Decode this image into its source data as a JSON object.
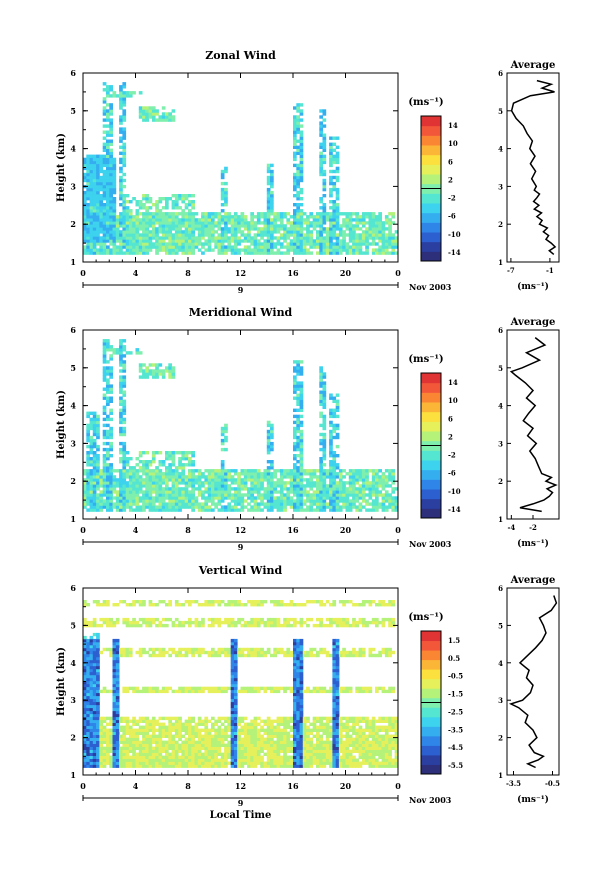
{
  "chart_data": [
    {
      "type": "heatmap",
      "title": "Zonal Wind",
      "ylabel": "Height (km)",
      "yticks": [
        "1",
        "2",
        "3",
        "4",
        "5",
        "6"
      ],
      "ylim": [
        1,
        6
      ],
      "xticks": [
        "0",
        "4",
        "8",
        "12",
        "16",
        "20",
        "0"
      ],
      "date_label": "9",
      "month_label": "Nov 2003",
      "colorbar": {
        "unit": "(ms⁻¹)",
        "ticks": [
          "14",
          "10",
          "6",
          "2",
          "-2",
          "-6",
          "-10",
          "-14"
        ],
        "range": [
          -16,
          16
        ]
      },
      "average": {
        "title": "Average",
        "xlabel": "(ms⁻¹)",
        "xticks": [
          "-7",
          "-1"
        ],
        "xlim": [
          -7.6,
          0.4
        ],
        "profile": [
          [
            1.2,
            -0.4
          ],
          [
            1.3,
            -1.1
          ],
          [
            1.4,
            -0.2
          ],
          [
            1.5,
            -0.8
          ],
          [
            1.6,
            -1.6
          ],
          [
            1.7,
            -1.2
          ],
          [
            1.8,
            -2.0
          ],
          [
            1.9,
            -1.4
          ],
          [
            2.0,
            -2.6
          ],
          [
            2.1,
            -2.2
          ],
          [
            2.2,
            -3.0
          ],
          [
            2.3,
            -2.3
          ],
          [
            2.4,
            -3.4
          ],
          [
            2.5,
            -2.7
          ],
          [
            2.6,
            -3.5
          ],
          [
            2.7,
            -3.0
          ],
          [
            2.8,
            -2.6
          ],
          [
            2.9,
            -3.4
          ],
          [
            3.0,
            -3.1
          ],
          [
            3.2,
            -3.8
          ],
          [
            3.4,
            -3.2
          ],
          [
            3.6,
            -4.0
          ],
          [
            3.8,
            -3.3
          ],
          [
            4.0,
            -4.1
          ],
          [
            4.2,
            -3.7
          ],
          [
            4.4,
            -4.5
          ],
          [
            4.6,
            -5.1
          ],
          [
            4.8,
            -6.2
          ],
          [
            5.0,
            -6.9
          ],
          [
            5.2,
            -6.6
          ],
          [
            5.4,
            -4.0
          ],
          [
            5.5,
            -0.3
          ],
          [
            5.6,
            -2.2
          ],
          [
            5.7,
            -0.8
          ],
          [
            5.8,
            -3.0
          ]
        ]
      }
    },
    {
      "type": "heatmap",
      "title": "Meridional Wind",
      "ylabel": "Height (km)",
      "yticks": [
        "1",
        "2",
        "3",
        "4",
        "5",
        "6"
      ],
      "ylim": [
        1,
        6
      ],
      "xticks": [
        "0",
        "4",
        "8",
        "12",
        "16",
        "20",
        "0"
      ],
      "date_label": "9",
      "month_label": "Nov 2003",
      "colorbar": {
        "unit": "(ms⁻¹)",
        "ticks": [
          "14",
          "10",
          "6",
          "2",
          "-2",
          "-6",
          "-10",
          "-14"
        ],
        "range": [
          -16,
          16
        ]
      },
      "average": {
        "title": "Average",
        "xlabel": "(ms⁻¹)",
        "xticks": [
          "-4",
          "-2"
        ],
        "xlim": [
          -4.4,
          0.4
        ],
        "profile": [
          [
            1.2,
            -1.2
          ],
          [
            1.3,
            -3.2
          ],
          [
            1.4,
            -2.0
          ],
          [
            1.5,
            -1.0
          ],
          [
            1.6,
            -0.5
          ],
          [
            1.7,
            -0.2
          ],
          [
            1.8,
            -0.7
          ],
          [
            1.9,
            0.1
          ],
          [
            2.0,
            -0.8
          ],
          [
            2.1,
            -0.3
          ],
          [
            2.2,
            -1.2
          ],
          [
            2.4,
            -1.5
          ],
          [
            2.6,
            -1.8
          ],
          [
            2.8,
            -2.3
          ],
          [
            3.0,
            -1.7
          ],
          [
            3.2,
            -2.5
          ],
          [
            3.4,
            -2.0
          ],
          [
            3.6,
            -2.9
          ],
          [
            3.8,
            -2.4
          ],
          [
            4.0,
            -1.8
          ],
          [
            4.2,
            -2.6
          ],
          [
            4.4,
            -2.0
          ],
          [
            4.6,
            -2.7
          ],
          [
            4.8,
            -3.6
          ],
          [
            4.9,
            -4.0
          ],
          [
            5.0,
            -3.0
          ],
          [
            5.2,
            -1.4
          ],
          [
            5.4,
            -2.6
          ],
          [
            5.6,
            -0.9
          ],
          [
            5.8,
            -1.8
          ]
        ]
      }
    },
    {
      "type": "heatmap",
      "title": "Vertical Wind",
      "ylabel": "Height (km)",
      "xlabel": "Local Time",
      "yticks": [
        "1",
        "2",
        "3",
        "4",
        "5",
        "6"
      ],
      "ylim": [
        1,
        6
      ],
      "xticks": [
        "0",
        "4",
        "8",
        "12",
        "16",
        "20",
        "0"
      ],
      "date_label": "9",
      "month_label": "Nov 2003",
      "colorbar": {
        "unit": "(ms⁻¹)",
        "ticks": [
          "1.5",
          "0.5",
          "-0.5",
          "-1.5",
          "-2.5",
          "-3.5",
          "-4.5",
          "-5.5"
        ],
        "range": [
          -6.0,
          2.0
        ]
      },
      "average": {
        "title": "Average",
        "xlabel": "(ms⁻¹)",
        "xticks": [
          "-3.5",
          "-0.5"
        ],
        "xlim": [
          -4.0,
          0.0
        ],
        "profile": [
          [
            1.2,
            -1.8
          ],
          [
            1.3,
            -2.4
          ],
          [
            1.4,
            -1.6
          ],
          [
            1.5,
            -1.2
          ],
          [
            1.6,
            -1.9
          ],
          [
            1.8,
            -2.3
          ],
          [
            2.0,
            -1.7
          ],
          [
            2.2,
            -2.0
          ],
          [
            2.4,
            -2.6
          ],
          [
            2.6,
            -2.4
          ],
          [
            2.8,
            -3.1
          ],
          [
            2.9,
            -3.7
          ],
          [
            3.0,
            -2.8
          ],
          [
            3.2,
            -2.2
          ],
          [
            3.4,
            -2.0
          ],
          [
            3.6,
            -2.5
          ],
          [
            3.8,
            -2.3
          ],
          [
            4.0,
            -3.0
          ],
          [
            4.2,
            -2.4
          ],
          [
            4.4,
            -1.8
          ],
          [
            4.6,
            -1.3
          ],
          [
            4.8,
            -1.0
          ],
          [
            5.0,
            -1.2
          ],
          [
            5.2,
            -1.5
          ],
          [
            5.4,
            -0.6
          ],
          [
            5.6,
            -0.2
          ],
          [
            5.8,
            -0.4
          ]
        ]
      }
    }
  ]
}
